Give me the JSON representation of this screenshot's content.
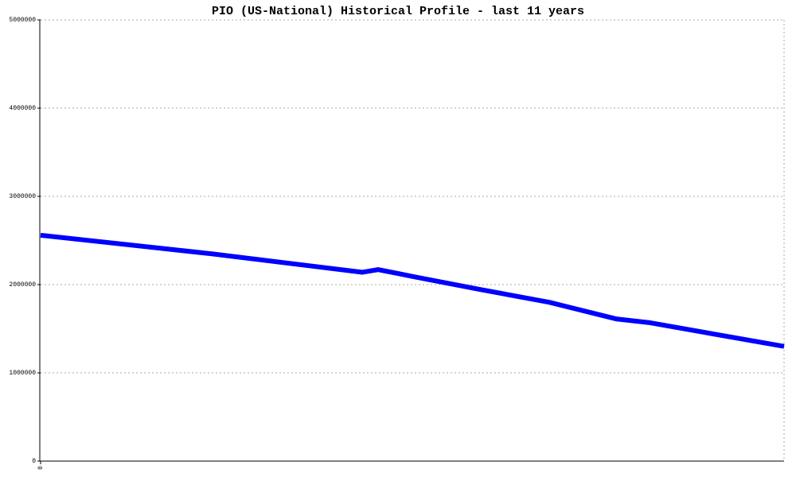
{
  "chart_data": {
    "type": "line",
    "title": "PIO (US-National) Historical Profile - last 11 years",
    "x": [
      0,
      22.9,
      43.3,
      45.4,
      50.2,
      58.8,
      68.4,
      77.5,
      81.8,
      100
    ],
    "series": [
      {
        "name": "PIO",
        "color": "#0000ff",
        "values": [
          2560000,
          2350000,
          2140000,
          2170000,
          2090000,
          1950000,
          1800000,
          1610000,
          1570000,
          1300000
        ]
      }
    ],
    "xlim": [
      0,
      100
    ],
    "xticks": [
      0
    ],
    "ylim": [
      0,
      5000000
    ],
    "yticks": [
      0,
      1000000,
      2000000,
      3000000,
      4000000,
      5000000
    ],
    "grid": true
  }
}
